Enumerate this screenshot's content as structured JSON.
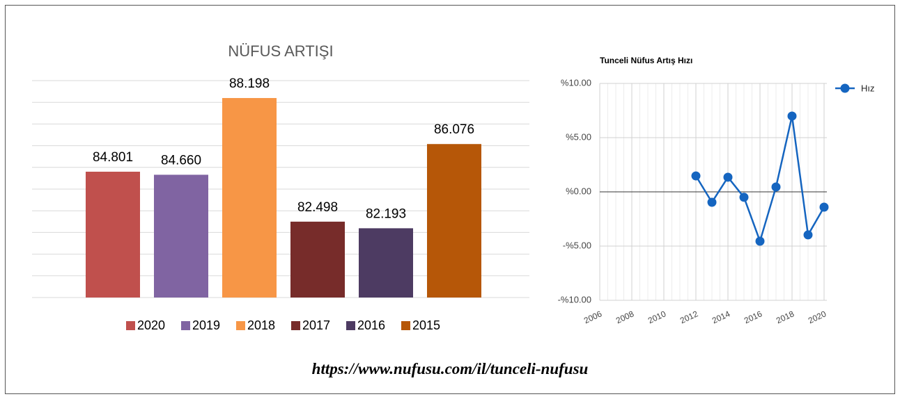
{
  "chart_data": [
    {
      "type": "bar",
      "title": "NÜFUS ARTIŞI",
      "categories": [
        "2020",
        "2019",
        "2018",
        "2017",
        "2016",
        "2015"
      ],
      "values": [
        84801,
        84660,
        88198,
        82498,
        82193,
        86076
      ],
      "value_labels": [
        "84.801",
        "84.660",
        "88.198",
        "82.498",
        "82.193",
        "86.076"
      ],
      "colors": [
        "#c0504d",
        "#8064a2",
        "#f79646",
        "#772c2a",
        "#4d3b62",
        "#b65708"
      ],
      "ylim": [
        79000,
        89000
      ],
      "yticks": [
        79000,
        80000,
        81000,
        82000,
        83000,
        84000,
        85000,
        86000,
        87000,
        88000,
        89000
      ],
      "grid": true,
      "legend": "bottom"
    },
    {
      "type": "line",
      "title": "Tunceli Nüfus Artış Hızı",
      "x": [
        2012,
        2013,
        2014,
        2015,
        2016,
        2017,
        2018,
        2019,
        2020
      ],
      "series": [
        {
          "name": "Hız",
          "color": "#1565c0",
          "values": [
            1.47,
            -0.96,
            1.35,
            -0.5,
            -4.55,
            0.45,
            6.99,
            -3.97,
            -1.41
          ]
        }
      ],
      "xlim": [
        2006,
        2020
      ],
      "xticks": [
        2006,
        2008,
        2010,
        2012,
        2014,
        2016,
        2018,
        2020
      ],
      "ylim": [
        -10,
        10
      ],
      "yticks": [
        {
          "value": -10,
          "label": "-%10.00"
        },
        {
          "value": -5,
          "label": "-%5.00"
        },
        {
          "value": 0,
          "label": "%0.00"
        },
        {
          "value": 5,
          "label": "%5.00"
        },
        {
          "value": 10,
          "label": "%10.00"
        }
      ],
      "grid": true,
      "legend": "top-right"
    }
  ],
  "source_url": "https://www.nufusu.com/il/tunceli-nufusu"
}
